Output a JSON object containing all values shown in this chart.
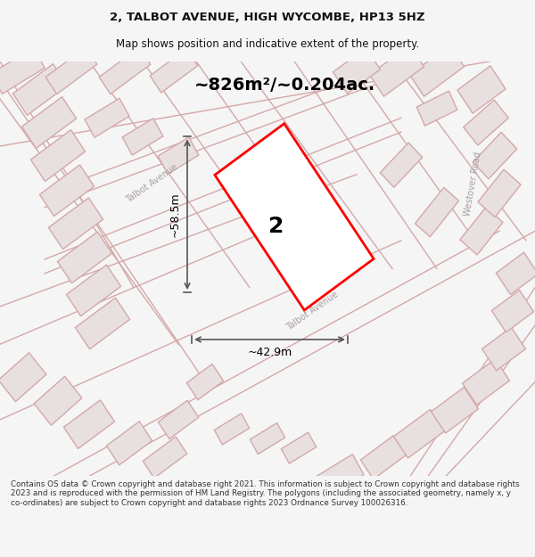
{
  "title": "2, TALBOT AVENUE, HIGH WYCOMBE, HP13 5HZ",
  "subtitle": "Map shows position and indicative extent of the property.",
  "area_text": "~826m²/~0.204ac.",
  "dim_width": "~42.9m",
  "dim_height": "~58.5m",
  "plot_number": "2",
  "street1": "Talbot Avenue",
  "street2": "Talbot Avenue",
  "street3": "Westover Road",
  "footer": "Contains OS data © Crown copyright and database right 2021. This information is subject to Crown copyright and database rights 2023 and is reproduced with the permission of HM Land Registry. The polygons (including the associated geometry, namely x, y co-ordinates) are subject to Crown copyright and database rights 2023 Ordnance Survey 100026316.",
  "bg_color": "#f5f0f0",
  "map_bg": "#f5f0f0",
  "building_fill": "#e8e0e0",
  "building_edge": "#d4a8a8",
  "road_color": "#d4a8a8",
  "highlight_color": "#ff0000",
  "highlight_fill": "#ffffff",
  "dim_color": "#555555",
  "text_color": "#333333",
  "footer_color": "#333333",
  "title_color": "#111111"
}
